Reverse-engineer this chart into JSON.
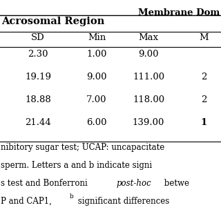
{
  "title_right": "Membrane Dom",
  "section_header": "Acrosomal Region",
  "col_headers": [
    "SD",
    "Min",
    "Max",
    "M"
  ],
  "rows": [
    [
      "2.30",
      "1.00",
      "9.00",
      ""
    ],
    [
      "19.19",
      "9.00",
      "111.00",
      "2"
    ],
    [
      "18.88",
      "7.00",
      "118.00",
      "2"
    ],
    [
      "21.44",
      "6.00",
      "139.00",
      "1"
    ]
  ],
  "footer_lines": [
    "nibitory sugar test; UCAP: uncapacitate",
    "sperm. Letters a and b indicate signi",
    "s test and Bonferroni post-hoc betwe",
    "P and CAP1, b significant differences"
  ],
  "bg_color": "#ffffff",
  "text_color": "#000000",
  "title_fontsize": 9.5,
  "section_fontsize": 10.5,
  "col_header_fontsize": 9.5,
  "data_fontsize": 9.5,
  "footer_fontsize": 8.5
}
